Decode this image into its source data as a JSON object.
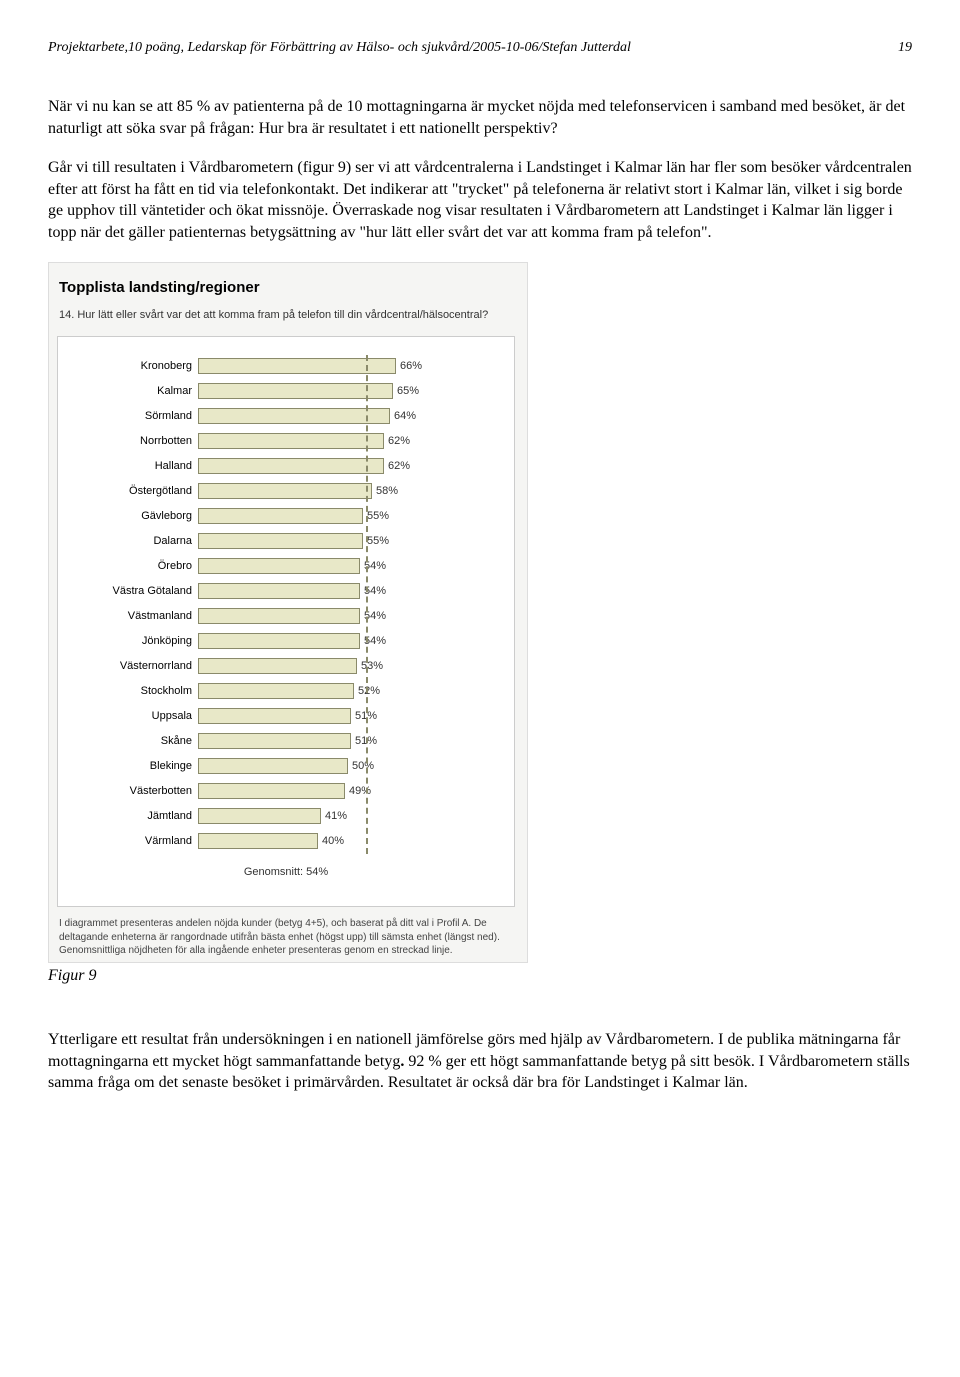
{
  "header": {
    "left": "Projektarbete,10 poäng, Ledarskap för Förbättring av Hälso- och sjukvård/2005-10-06/Stefan Jutterdal",
    "page": "19"
  },
  "paragraph1": "När vi nu kan se att 85 % av patienterna på de 10 mottagningarna är mycket nöjda med telefonservicen i samband med besöket, är det naturligt att söka svar på frågan: Hur bra är resultatet i ett nationellt perspektiv?",
  "paragraph2": "Går vi till resultaten i Vårdbarometern (figur 9) ser vi att vårdcentralerna i Landstinget i Kalmar län har fler som besöker vårdcentralen efter att först ha fått en tid via telefonkontakt. Det indikerar att \"trycket\" på telefonerna är relativt stort i Kalmar län, vilket i sig borde ge upphov till väntetider och ökat missnöje. Överraskade nog visar resultaten i Vårdbarometern att Landstinget i Kalmar län ligger i topp när det gäller patienternas betygsättning av \"hur lätt eller svårt det var att komma fram på telefon\".",
  "chart": {
    "title": "Topplista landsting/regioner",
    "question": "14. Hur lätt eller svårt var det att komma fram på telefon till din vårdcentral/hälsocentral?",
    "bar_fill_color": "#e8e8c8",
    "bar_border_color": "#8a8a6a",
    "avg_line_color": "#8a8a6a",
    "label_fontsize": 11,
    "xmax": 100,
    "average_value": 54,
    "average_label": "Genomsnitt: 54%",
    "rows": [
      {
        "label": "Kronoberg",
        "value": 66
      },
      {
        "label": "Kalmar",
        "value": 65
      },
      {
        "label": "Sörmland",
        "value": 64
      },
      {
        "label": "Norrbotten",
        "value": 62
      },
      {
        "label": "Halland",
        "value": 62
      },
      {
        "label": "Östergötland",
        "value": 58
      },
      {
        "label": "Gävleborg",
        "value": 55
      },
      {
        "label": "Dalarna",
        "value": 55
      },
      {
        "label": "Örebro",
        "value": 54
      },
      {
        "label": "Västra Götaland",
        "value": 54
      },
      {
        "label": "Västmanland",
        "value": 54
      },
      {
        "label": "Jönköping",
        "value": 54
      },
      {
        "label": "Västernorrland",
        "value": 53
      },
      {
        "label": "Stockholm",
        "value": 52
      },
      {
        "label": "Uppsala",
        "value": 51
      },
      {
        "label": "Skåne",
        "value": 51
      },
      {
        "label": "Blekinge",
        "value": 50
      },
      {
        "label": "Västerbotten",
        "value": 49
      },
      {
        "label": "Jämtland",
        "value": 41
      },
      {
        "label": "Värmland",
        "value": 40
      }
    ],
    "footnote": "I diagrammet presenteras andelen nöjda kunder (betyg 4+5), och baserat på ditt val i Profil A. De deltagande enheterna är rangordnade utifrån bästa enhet (högst upp) till sämsta enhet (längst ned). Genomsnittliga nöjdheten för alla ingående enheter presenteras genom en streckad linje."
  },
  "figure_caption": "Figur 9",
  "paragraph3_a": "Ytterligare ett resultat från undersökningen i en nationell jämförelse görs med hjälp av Vårdbarometern. I de publika mätningarna får mottagningarna ett mycket högt sammanfattande betyg",
  "paragraph3_b_bold": ".",
  "paragraph3_c": " 92 % ger ett högt sammanfattande betyg på sitt besök. I Vårdbarometern ställs samma fråga om det senaste besöket i primärvården. Resultatet är också där bra för Landstinget i Kalmar län."
}
